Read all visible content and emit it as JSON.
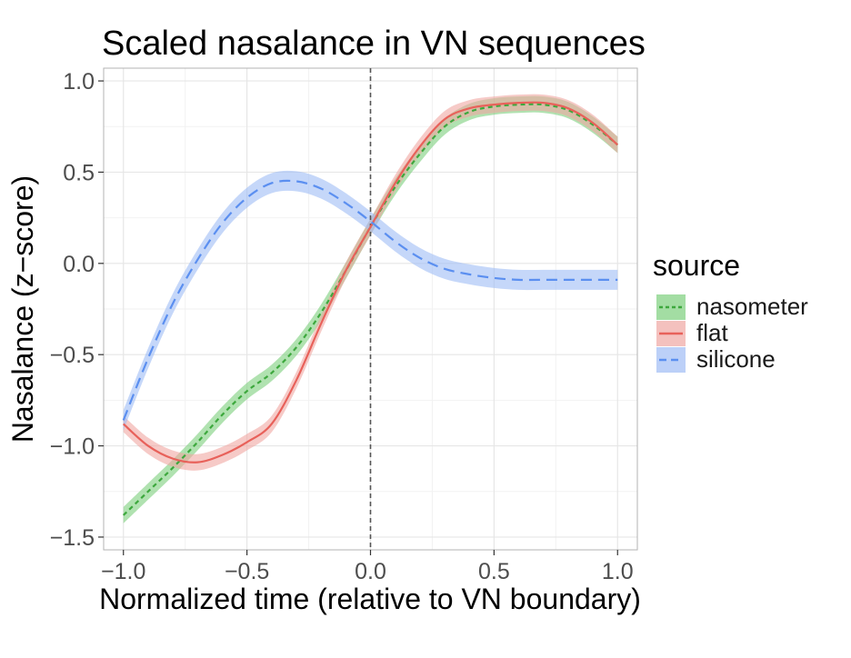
{
  "chart_data": {
    "type": "line",
    "title": "Scaled nasalance in VN sequences",
    "xlabel": "Normalized time (relative to VN boundary)",
    "ylabel": "Nasalance (z−score)",
    "xlim": [
      -1.08,
      1.08
    ],
    "ylim": [
      -1.57,
      1.07
    ],
    "x_ticks": [
      -1.0,
      -0.5,
      0.0,
      0.5,
      1.0
    ],
    "x_tick_labels": [
      "−1.0",
      "−0.5",
      "0.0",
      "0.5",
      "1.0"
    ],
    "y_ticks": [
      -1.5,
      -1.0,
      -0.5,
      0.0,
      0.5,
      1.0
    ],
    "y_tick_labels": [
      "−1.5",
      "−1.0",
      "−0.5",
      "0.0",
      "0.5",
      "1.0"
    ],
    "grid": true,
    "reference_line": {
      "x": 0.0,
      "style": "dashed"
    },
    "legend": {
      "title": "source",
      "position": "right"
    },
    "x": [
      -1.0,
      -0.9,
      -0.8,
      -0.7,
      -0.6,
      -0.5,
      -0.4,
      -0.3,
      -0.2,
      -0.1,
      0.0,
      0.1,
      0.2,
      0.3,
      0.4,
      0.5,
      0.6,
      0.7,
      0.8,
      0.9,
      1.0
    ],
    "series": [
      {
        "name": "nasometer",
        "color": "#3da83d",
        "band_color": "#7ccf7c",
        "dash": "5,4",
        "values": [
          -1.38,
          -1.25,
          -1.12,
          -0.98,
          -0.83,
          -0.7,
          -0.6,
          -0.46,
          -0.27,
          -0.04,
          0.2,
          0.42,
          0.6,
          0.75,
          0.83,
          0.86,
          0.87,
          0.87,
          0.84,
          0.76,
          0.65
        ],
        "band": 0.045
      },
      {
        "name": "flat",
        "color": "#e8615a",
        "band_color": "#f0a6a2",
        "dash": "",
        "values": [
          -0.88,
          -1.0,
          -1.07,
          -1.09,
          -1.05,
          -0.98,
          -0.88,
          -0.64,
          -0.33,
          -0.04,
          0.2,
          0.44,
          0.64,
          0.79,
          0.85,
          0.87,
          0.88,
          0.88,
          0.85,
          0.77,
          0.65
        ],
        "band": 0.045
      },
      {
        "name": "silicone",
        "color": "#5b8ff0",
        "band_color": "#9fbcf5",
        "dash": "12,7",
        "values": [
          -0.86,
          -0.52,
          -0.22,
          0.02,
          0.22,
          0.36,
          0.44,
          0.45,
          0.41,
          0.33,
          0.23,
          0.12,
          0.03,
          -0.03,
          -0.06,
          -0.08,
          -0.09,
          -0.09,
          -0.09,
          -0.09,
          -0.09
        ],
        "band": 0.055
      }
    ]
  }
}
